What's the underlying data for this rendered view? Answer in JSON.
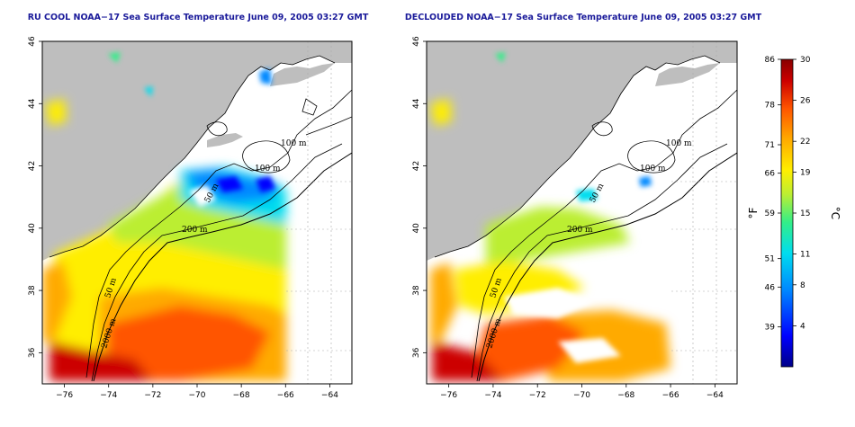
{
  "panels": [
    {
      "title": "RU COOL NOAA−17 Sea Surface Temperature June 09, 2005 03:27 GMT",
      "contour_labels": [
        "100 m",
        "100 m",
        "50 m",
        "200 m",
        "50 m",
        "2000 m"
      ]
    },
    {
      "title": "DECLOUDED NOAA−17 Sea Surface Temperature June 09, 2005 03:27 GMT",
      "contour_labels": [
        "100 m",
        "100 m",
        "50 m",
        "200 m",
        "50 m",
        "2000 m"
      ]
    }
  ],
  "axes": {
    "x_ticks": [
      "−76",
      "−74",
      "−72",
      "−70",
      "−68",
      "−66",
      "−64"
    ],
    "x_values": [
      -76,
      -74,
      -72,
      -70,
      -68,
      -66,
      -64
    ],
    "y_ticks": [
      "36",
      "38",
      "40",
      "42",
      "44",
      "46"
    ],
    "y_values": [
      36,
      38,
      40,
      42,
      44,
      46
    ],
    "lon_range": [
      -77,
      -63
    ],
    "lat_range": [
      35,
      46
    ]
  },
  "colorbar": {
    "fahrenheit_ticks": [
      "86",
      "78",
      "71",
      "66",
      "59",
      "51",
      "46",
      "39"
    ],
    "fahrenheit_values": [
      86,
      78,
      71,
      66,
      59,
      51,
      46,
      39
    ],
    "celsius_ticks": [
      "30",
      "26",
      "22",
      "19",
      "15",
      "11",
      "8",
      "4"
    ],
    "celsius_values": [
      30,
      26,
      22,
      19,
      15,
      11,
      8,
      4
    ],
    "celsius_range": [
      0,
      30
    ],
    "fahrenheit_label": "°F",
    "celsius_label": "°C",
    "colors": [
      "#000088",
      "#0000ff",
      "#0088ff",
      "#00ddee",
      "#33ee88",
      "#bbee33",
      "#ffee00",
      "#ffaa00",
      "#ff5500",
      "#cc0000",
      "#880000"
    ]
  },
  "colors": {
    "land": "#bebebe",
    "water_no_data": "#ffffff",
    "title": "#1a1a9a"
  }
}
